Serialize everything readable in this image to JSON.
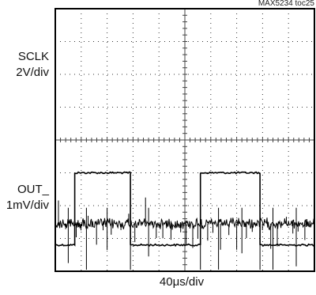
{
  "figure_id": "MAX5234 toc25",
  "chart_data": {
    "type": "line",
    "title": "",
    "grid": true,
    "divisions": {
      "x": 10,
      "y": 8
    },
    "xlabel": "40μs/div",
    "ylabel": "",
    "channels": [
      {
        "name": "SCLK",
        "scale": "2V/div"
      },
      {
        "name": "OUT_",
        "scale": "1mV/div"
      }
    ],
    "series": [
      {
        "name": "SCLK",
        "type": "step",
        "x_div": [
          0,
          0.75,
          0.75,
          2.9,
          2.9,
          5.6,
          5.6,
          7.9,
          7.9,
          10
        ],
        "y_div": [
          -3.2,
          -3.2,
          -1.0,
          -1.0,
          -3.2,
          -3.2,
          -1.0,
          -1.0,
          -3.2,
          -3.2
        ]
      },
      {
        "name": "OUT_",
        "type": "noise",
        "baseline_div": 2.55,
        "spikes_x_div": [
          0.5,
          1.2,
          2.0,
          2.9,
          3.6,
          5.6,
          6.3,
          7.2,
          7.9,
          8.4,
          9.3
        ],
        "spike_depth_div": [
          1.2,
          1.5,
          0.8,
          3.1,
          1.0,
          3.0,
          1.4,
          0.9,
          1.6,
          3.1,
          1.3
        ]
      }
    ]
  }
}
